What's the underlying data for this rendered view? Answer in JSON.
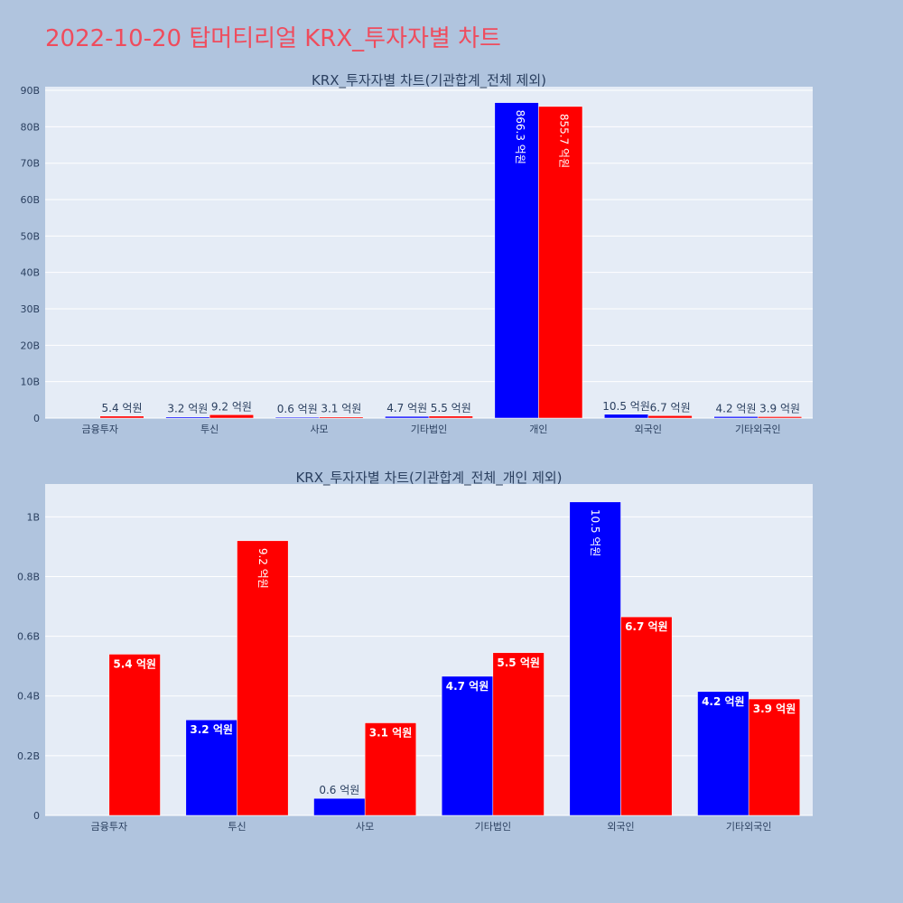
{
  "page_title": "2022-10-20 탑머티리얼 KRX_투자자별 차트",
  "colors": {
    "buy": "#0000ff",
    "sell": "#ff0000",
    "plot_bg": "#e5ecf6",
    "page_bg": "#b0c4de",
    "title": "#ef4c5d"
  },
  "chart_data": [
    {
      "type": "bar",
      "title": "KRX_투자자별 차트(기관합계_전체 제외)",
      "categories": [
        "금융투자",
        "투신",
        "사모",
        "기타법인",
        "개인",
        "외국인",
        "기타외국인"
      ],
      "ylim": [
        0,
        91
      ],
      "y_unit": 1000000000,
      "yticks": [
        0,
        10,
        20,
        30,
        40,
        50,
        60,
        70,
        80,
        90
      ],
      "ytick_labels": [
        "0",
        "10B",
        "20B",
        "30B",
        "40B",
        "50B",
        "60B",
        "70B",
        "80B",
        "90B"
      ],
      "grid": true,
      "series": [
        {
          "color": "#0000ff",
          "values": [
            0,
            0.32,
            0.057,
            0.466,
            86.63,
            1.05,
            0.415
          ],
          "labels": [
            "",
            "3.2 억원",
            "0.6 억원",
            "4.7 억원",
            "866.3 억원",
            "10.5 억원",
            "4.2 억원"
          ]
        },
        {
          "color": "#ff0000",
          "values": [
            0.54,
            0.92,
            0.31,
            0.545,
            85.57,
            0.665,
            0.39
          ],
          "labels": [
            "5.4 억원",
            "9.2 억원",
            "3.1 억원",
            "5.5 억원",
            "855.7 억원",
            "6.7 억원",
            "3.9 억원"
          ]
        }
      ]
    },
    {
      "type": "bar",
      "title": "KRX_투자자별 차트(기관합계_전체_개인 제외)",
      "categories": [
        "금융투자",
        "투신",
        "사모",
        "기타법인",
        "외국인",
        "기타외국인"
      ],
      "ylim": [
        0,
        1.11
      ],
      "y_unit": 1000000000,
      "yticks": [
        0,
        0.2,
        0.4,
        0.6,
        0.8,
        1.0
      ],
      "ytick_labels": [
        "0",
        "0.2B",
        "0.4B",
        "0.6B",
        "0.8B",
        "1B"
      ],
      "grid": true,
      "series": [
        {
          "color": "#0000ff",
          "values": [
            0,
            0.32,
            0.057,
            0.466,
            1.05,
            0.415
          ],
          "labels": [
            "",
            "3.2 억원",
            "0.6 억원",
            "4.7 억원",
            "10.5 억원",
            "4.2 억원"
          ]
        },
        {
          "color": "#ff0000",
          "values": [
            0.54,
            0.92,
            0.31,
            0.545,
            0.665,
            0.39
          ],
          "labels": [
            "5.4 억원",
            "9.2 억원",
            "3.1 억원",
            "5.5 억원",
            "6.7 억원",
            "3.9 억원"
          ]
        }
      ]
    }
  ]
}
